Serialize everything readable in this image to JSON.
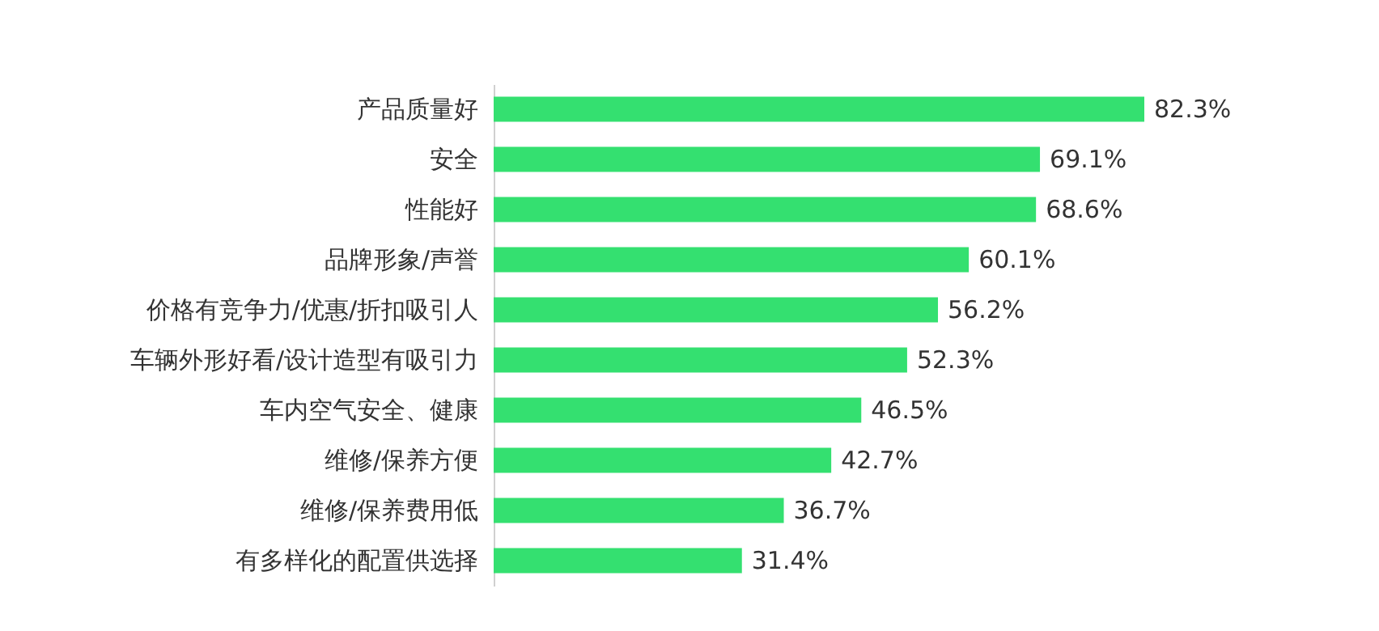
{
  "chart_data": {
    "type": "bar",
    "orientation": "horizontal",
    "categories": [
      "产品质量好",
      "安全",
      "性能好",
      "品牌形象/声誉",
      "价格有竞争力/优惠/折扣吸引人",
      "车辆外形好看/设计造型有吸引力",
      "车内空气安全、健康",
      "维修/保养方便",
      "维修/保养费用低",
      "有多样化的配置供选择"
    ],
    "values": [
      82.3,
      69.1,
      68.6,
      60.1,
      56.2,
      52.3,
      46.5,
      42.7,
      36.7,
      31.4
    ],
    "value_labels": [
      "82.3%",
      "69.1%",
      "68.6%",
      "60.1%",
      "56.2%",
      "52.3%",
      "46.5%",
      "42.7%",
      "36.7%",
      "31.4%"
    ],
    "color": "#34e070"
  }
}
